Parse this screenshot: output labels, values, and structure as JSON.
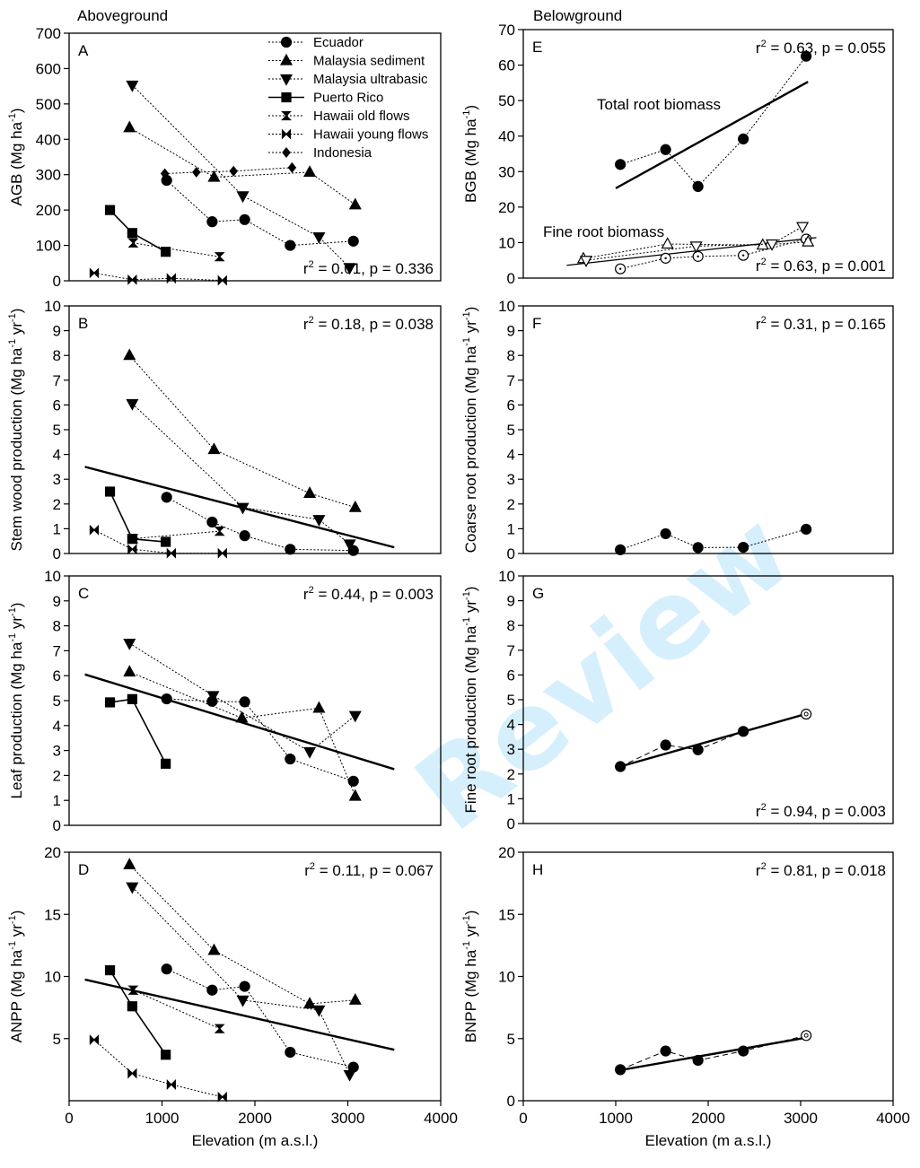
{
  "col_titles": {
    "left": "Aboveground",
    "right": "Belowground"
  },
  "shared_xlabel": "Elevation (m a.s.l.)",
  "watermark": "Review",
  "legend": [
    {
      "name": "Ecuador",
      "marker": "circle"
    },
    {
      "name": "Malaysia sediment",
      "marker": "triangle-up"
    },
    {
      "name": "Malaysia ultrabasic",
      "marker": "triangle-down"
    },
    {
      "name": "Puerto Rico",
      "marker": "square",
      "line": "solid"
    },
    {
      "name": "Hawaii old flows",
      "marker": "hourglass"
    },
    {
      "name": "Hawaii young flows",
      "marker": "bowtie"
    },
    {
      "name": "Indonesia",
      "marker": "diamond"
    }
  ],
  "chart_data": [
    {
      "panel": "A",
      "type": "scatter",
      "ylabel": "AGB (Mg ha⁻¹)",
      "ylim": [
        0,
        700
      ],
      "yticks": [
        0,
        100,
        200,
        300,
        400,
        500,
        600,
        700
      ],
      "xlim": [
        0,
        4000
      ],
      "xticks": [],
      "stat": "r² = 0.01, p = 0.336",
      "stat_pos": "bottom-right",
      "series": [
        {
          "name": "Ecuador",
          "x": [
            1050,
            1540,
            1890,
            2380,
            3060
          ],
          "y": [
            284,
            167,
            173,
            100,
            112
          ]
        },
        {
          "name": "Malaysia sediment",
          "x": [
            650,
            1560,
            2590,
            3080
          ],
          "y": [
            433,
            293,
            307,
            215
          ]
        },
        {
          "name": "Malaysia ultrabasic",
          "x": [
            680,
            1870,
            2690,
            3020
          ],
          "y": [
            553,
            240,
            124,
            37
          ]
        },
        {
          "name": "Puerto Rico",
          "x": [
            440,
            680,
            1040
          ],
          "y": [
            200,
            135,
            82
          ]
        },
        {
          "name": "Hawaii old flows",
          "x": [
            690,
            1620
          ],
          "y": [
            107,
            68
          ]
        },
        {
          "name": "Hawaii young flows",
          "x": [
            270,
            680,
            1100,
            1650
          ],
          "y": [
            22,
            3,
            7,
            1
          ]
        },
        {
          "name": "Indonesia",
          "x": [
            1030,
            1370,
            1770,
            2400
          ],
          "y": [
            303,
            307,
            310,
            320
          ]
        }
      ]
    },
    {
      "panel": "E",
      "type": "scatter",
      "ylabel": "BGB (Mg ha⁻¹)",
      "ylim": [
        0,
        70
      ],
      "yticks": [
        0,
        10,
        20,
        30,
        40,
        50,
        60,
        70
      ],
      "xlim": [
        0,
        4000
      ],
      "xticks": [],
      "stat": "r² = 0.63, p = 0.055",
      "stat2": "r² = 0.63, p = 0.001",
      "annotations": [
        "Total root biomass",
        "Fine root biomass"
      ],
      "series": [
        {
          "name": "Ecuador",
          "role": "Total root biomass",
          "x": [
            1050,
            1540,
            1890,
            2380,
            3060
          ],
          "y": [
            32,
            36.2,
            25.8,
            39.2,
            62.5
          ]
        },
        {
          "name": "Ecuador",
          "role": "Fine root biomass",
          "x": [
            1050,
            1540,
            1890,
            2380,
            3060
          ],
          "y": [
            2.6,
            5.6,
            6.1,
            6.4,
            11
          ]
        },
        {
          "name": "Malaysia sediment",
          "role": "Fine root biomass",
          "x": [
            650,
            1560,
            2590,
            3080
          ],
          "y": [
            5.5,
            9.6,
            9.3,
            10.2
          ]
        },
        {
          "name": "Malaysia ultrabasic",
          "role": "Fine root biomass",
          "x": [
            680,
            1870,
            2690,
            3020
          ],
          "y": [
            5,
            9,
            9.6,
            14.5
          ]
        }
      ],
      "fits": [
        {
          "x": [
            1000,
            3080
          ],
          "y": [
            25.3,
            55.3
          ]
        },
        {
          "x": [
            470,
            3170
          ],
          "y": [
            3.6,
            11.4
          ]
        }
      ]
    },
    {
      "panel": "B",
      "type": "scatter",
      "ylabel": "Stem wood production (Mg ha⁻¹ yr⁻¹)",
      "ylim": [
        0,
        10
      ],
      "yticks": [
        0,
        1,
        2,
        3,
        4,
        5,
        6,
        7,
        8,
        9,
        10
      ],
      "xlim": [
        0,
        4000
      ],
      "xticks": [],
      "stat": "r² = 0.18, p = 0.038",
      "series": [
        {
          "name": "Ecuador",
          "x": [
            1050,
            1540,
            1890,
            2380,
            3060
          ],
          "y": [
            2.27,
            1.27,
            0.72,
            0.17,
            0.12
          ]
        },
        {
          "name": "Malaysia sediment",
          "x": [
            650,
            1560,
            2590,
            3080
          ],
          "y": [
            8,
            4.2,
            2.43,
            1.86
          ]
        },
        {
          "name": "Malaysia ultrabasic",
          "x": [
            680,
            1870,
            2690,
            3020
          ],
          "y": [
            6.05,
            1.86,
            1.37,
            0.38
          ]
        },
        {
          "name": "Puerto Rico",
          "x": [
            440,
            680,
            1040
          ],
          "y": [
            2.5,
            0.59,
            0.47
          ]
        },
        {
          "name": "Hawaii old flows",
          "x": [
            690,
            1620
          ],
          "y": [
            0.6,
            0.9
          ]
        },
        {
          "name": "Hawaii young flows",
          "x": [
            270,
            680,
            1100,
            1650
          ],
          "y": [
            0.95,
            0.17,
            0.01,
            0.01
          ]
        }
      ],
      "fits": [
        {
          "x": [
            170,
            3500
          ],
          "y": [
            3.5,
            0.25
          ]
        }
      ]
    },
    {
      "panel": "F",
      "type": "scatter",
      "ylabel": "Coarse root production (Mg ha⁻¹ yr⁻¹)",
      "ylim": [
        0,
        10
      ],
      "yticks": [
        0,
        1,
        2,
        3,
        4,
        5,
        6,
        7,
        8,
        9,
        10
      ],
      "xlim": [
        0,
        4000
      ],
      "xticks": [],
      "stat": "r² = 0.31, p = 0.165",
      "series": [
        {
          "name": "Ecuador",
          "x": [
            1050,
            1540,
            1890,
            2380,
            3060
          ],
          "y": [
            0.15,
            0.8,
            0.24,
            0.25,
            0.98
          ]
        }
      ]
    },
    {
      "panel": "C",
      "type": "scatter",
      "ylabel": "Leaf production (Mg ha⁻¹ yr⁻¹)",
      "ylim": [
        0,
        10
      ],
      "yticks": [
        0,
        1,
        2,
        3,
        4,
        5,
        6,
        7,
        8,
        9,
        10
      ],
      "xlim": [
        0,
        4000
      ],
      "xticks": [],
      "stat": "r² = 0.44, p = 0.003",
      "series": [
        {
          "name": "Ecuador",
          "x": [
            1050,
            1540,
            1890,
            2380,
            3060
          ],
          "y": [
            5.07,
            4.97,
            4.95,
            2.66,
            1.77
          ]
        },
        {
          "name": "Malaysia sediment",
          "x": [
            650,
            1860,
            2690,
            3080
          ],
          "y": [
            6.15,
            4.3,
            4.7,
            1.17
          ]
        },
        {
          "name": "Malaysia ultrabasic",
          "x": [
            650,
            1550,
            2590,
            3080
          ],
          "y": [
            7.3,
            5.2,
            2.95,
            4.4
          ]
        },
        {
          "name": "Puerto Rico",
          "x": [
            440,
            680,
            1040
          ],
          "y": [
            4.93,
            5.06,
            2.47
          ]
        }
      ],
      "fits": [
        {
          "x": [
            170,
            3500
          ],
          "y": [
            6.05,
            2.25
          ]
        }
      ]
    },
    {
      "panel": "G",
      "type": "scatter",
      "ylabel": "Fine root production (Mg ha⁻¹ yr⁻¹)",
      "ylim": [
        0,
        10
      ],
      "yticks": [
        0,
        1,
        2,
        3,
        4,
        5,
        6,
        7,
        8,
        9,
        10
      ],
      "xlim": [
        0,
        4000
      ],
      "xticks": [],
      "stat": "r² = 0.94, p = 0.003",
      "stat_pos": "bottom-right",
      "series": [
        {
          "name": "Ecuador",
          "x": [
            1050,
            1540,
            1890,
            2380,
            3060
          ],
          "y": [
            2.3,
            3.17,
            2.98,
            3.72,
            4.42
          ],
          "last_open": true
        }
      ],
      "fits": [
        {
          "x": [
            1000,
            3080
          ],
          "y": [
            2.25,
            4.45
          ]
        }
      ]
    },
    {
      "panel": "D",
      "type": "scatter",
      "ylabel": "ANPP (Mg ha⁻¹ yr⁻¹)",
      "ylim": [
        0,
        20
      ],
      "yticks": [
        5,
        10,
        15,
        20
      ],
      "xlim": [
        0,
        4000
      ],
      "xticks": [
        0,
        1000,
        2000,
        3000,
        4000
      ],
      "xlabel": "Elevation (m a.s.l.)",
      "stat": "r² = 0.11, p = 0.067",
      "series": [
        {
          "name": "Ecuador",
          "x": [
            1050,
            1540,
            1890,
            2380,
            3060
          ],
          "y": [
            10.6,
            8.9,
            9.2,
            3.9,
            2.7
          ]
        },
        {
          "name": "Malaysia sediment",
          "x": [
            650,
            1560,
            2590,
            3080
          ],
          "y": [
            19,
            12.1,
            7.8,
            8.1
          ]
        },
        {
          "name": "Malaysia ultrabasic",
          "x": [
            680,
            1870,
            2690,
            3020
          ],
          "y": [
            17.2,
            8.1,
            7.3,
            2.1
          ]
        },
        {
          "name": "Puerto Rico",
          "x": [
            440,
            680,
            1040
          ],
          "y": [
            10.5,
            7.6,
            3.7
          ]
        },
        {
          "name": "Hawaii old flows",
          "x": [
            690,
            1620
          ],
          "y": [
            8.9,
            5.8
          ]
        },
        {
          "name": "Hawaii young flows",
          "x": [
            270,
            680,
            1100,
            1650
          ],
          "y": [
            4.9,
            2.2,
            1.3,
            0.3
          ]
        }
      ],
      "fits": [
        {
          "x": [
            170,
            3500
          ],
          "y": [
            9.75,
            4.1
          ]
        }
      ]
    },
    {
      "panel": "H",
      "type": "scatter",
      "ylabel": "BNPP (Mg ha⁻¹ yr⁻¹)",
      "ylim": [
        0,
        20
      ],
      "yticks": [
        0,
        5,
        10,
        15,
        20
      ],
      "xlim": [
        0,
        4000
      ],
      "xticks": [
        0,
        1000,
        2000,
        3000,
        4000
      ],
      "xlabel": "Elevation (m a.s.l.)",
      "stat": "r² = 0.81, p = 0.018",
      "series": [
        {
          "name": "Ecuador",
          "x": [
            1050,
            1540,
            1890,
            2380,
            3060
          ],
          "y": [
            2.5,
            4,
            3.25,
            4,
            5.25
          ],
          "last_open": true
        }
      ],
      "fits": [
        {
          "x": [
            1000,
            3080
          ],
          "y": [
            2.4,
            5.1
          ]
        }
      ]
    }
  ]
}
